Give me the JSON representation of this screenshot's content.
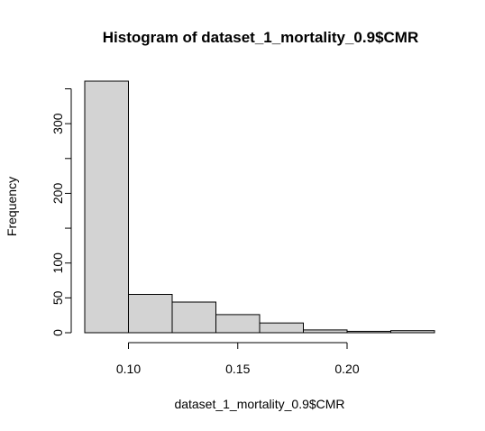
{
  "chart_data": {
    "type": "bar",
    "title": "Histogram of dataset_1_mortality_0.9$CMR",
    "xlabel": "dataset_1_mortality_0.9$CMR",
    "ylabel": "Frequency",
    "bin_edges": [
      0.08,
      0.1,
      0.12,
      0.14,
      0.16,
      0.18,
      0.2,
      0.22,
      0.24
    ],
    "values": [
      361,
      55,
      44,
      26,
      14,
      4,
      2,
      3
    ],
    "xlim": [
      0.08,
      0.24
    ],
    "ylim": [
      0,
      361
    ],
    "x_ticks": [
      0.1,
      0.15,
      0.2
    ],
    "x_tick_labels": [
      "0.10",
      "0.15",
      "0.20"
    ],
    "y_ticks": [
      0,
      50,
      100,
      150,
      200,
      250,
      300,
      350
    ],
    "y_tick_labels": [
      "0",
      "50",
      "100",
      "",
      "200",
      "",
      "300",
      ""
    ],
    "bar_color": "#d3d3d3",
    "grid": false,
    "legend": "none"
  }
}
